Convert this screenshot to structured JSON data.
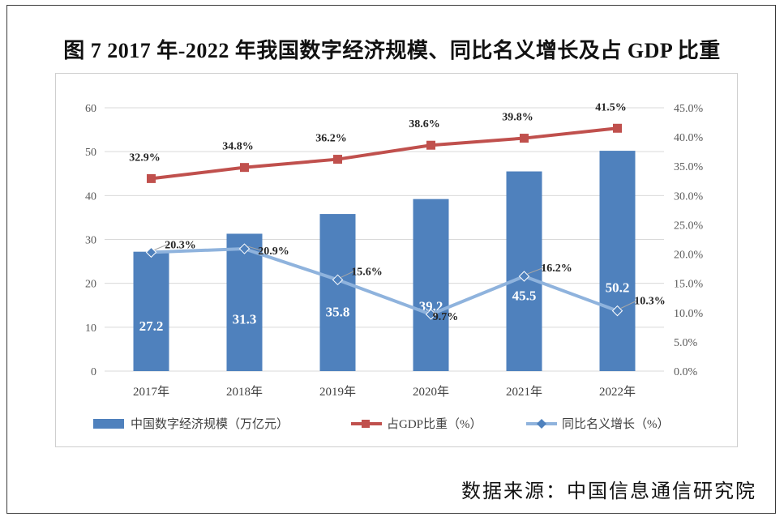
{
  "title": "图 7 2017 年-2022 年我国数字经济规模、同比名义增长及占 GDP 比重",
  "source": "数据来源：中国信息通信研究院",
  "colors": {
    "bar": "#4f81bd",
    "gdp_line": "#c0504d",
    "growth_line": "#8fb3dd",
    "grid": "#d9d9d9"
  },
  "chart_data": {
    "type": "bar",
    "title": "图 7 2017 年-2022 年我国数字经济规模、同比名义增长及占 GDP 比重",
    "categories": [
      "2017年",
      "2018年",
      "2019年",
      "2020年",
      "2021年",
      "2022年"
    ],
    "ylim": [
      0,
      60
    ],
    "ylim_right": [
      0,
      45
    ],
    "yticks": [
      "0",
      "10",
      "20",
      "30",
      "40",
      "50",
      "60"
    ],
    "yticks_right": [
      "0.0%",
      "5.0%",
      "10.0%",
      "15.0%",
      "20.0%",
      "25.0%",
      "30.0%",
      "35.0%",
      "40.0%",
      "45.0%"
    ],
    "grid": true,
    "legend_position": "bottom",
    "series": [
      {
        "name": "中国数字经济规模（万亿元）",
        "kind": "bar",
        "axis": "left",
        "values": [
          27.2,
          31.3,
          35.8,
          39.2,
          45.5,
          50.2
        ],
        "labels": [
          "27.2",
          "31.3",
          "35.8",
          "39.2",
          "45.5",
          "50.2"
        ]
      },
      {
        "name": "占GDP比重（%）",
        "kind": "line",
        "marker": "square",
        "axis": "right",
        "values": [
          32.9,
          34.8,
          36.2,
          38.6,
          39.8,
          41.5
        ],
        "labels": [
          "32.9%",
          "34.8%",
          "36.2%",
          "38.6%",
          "39.8%",
          "41.5%"
        ]
      },
      {
        "name": "同比名义增长（%）",
        "kind": "line",
        "marker": "diamond",
        "axis": "right",
        "values": [
          20.3,
          20.9,
          15.6,
          9.7,
          16.2,
          10.3
        ],
        "labels": [
          "20.3%",
          "20.9%",
          "15.6%",
          "9.7%",
          "16.2%",
          "10.3%"
        ]
      }
    ]
  }
}
